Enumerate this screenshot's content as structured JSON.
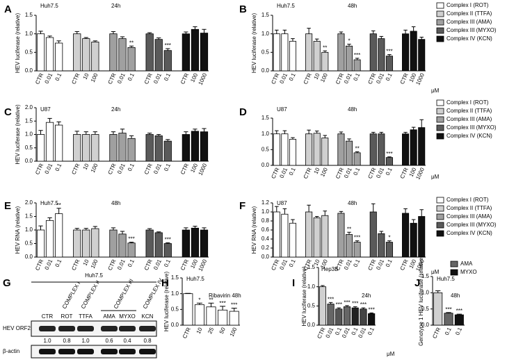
{
  "chart_data": [
    {
      "type": "bar",
      "panel_label": "A",
      "cell_line": "Huh7.5",
      "title": "24h",
      "y_label": "HEV luciferase (relative)",
      "categories": [
        "CTR",
        "0.01",
        "0.1",
        null,
        "CTR",
        "10",
        "100",
        null,
        "CTR",
        "0.01",
        "0.1",
        null,
        "CTR",
        "0.01",
        "0.1",
        null,
        "CTR",
        "100",
        "1000"
      ],
      "values": [
        1.0,
        0.9,
        0.75,
        null,
        1.0,
        0.87,
        0.78,
        null,
        1.0,
        0.87,
        0.63,
        null,
        1.0,
        0.85,
        0.55,
        null,
        1.0,
        1.12,
        1.02
      ],
      "errors": [
        0.07,
        0.04,
        0.06,
        null,
        0.06,
        0.03,
        0.03,
        null,
        0.06,
        0.05,
        0.04,
        null,
        0.03,
        0.04,
        0.05,
        null,
        0.05,
        0.07,
        0.1
      ],
      "significance": [
        null,
        null,
        null,
        null,
        null,
        null,
        null,
        null,
        null,
        null,
        "**",
        null,
        null,
        null,
        "***",
        null,
        null,
        null,
        null
      ],
      "colors": [
        "#ffffff",
        "#ffffff",
        "#ffffff",
        null,
        "#d0d0d0",
        "#d0d0d0",
        "#d0d0d0",
        null,
        "#a0a0a0",
        "#a0a0a0",
        "#a0a0a0",
        null,
        "#5a5a5a",
        "#5a5a5a",
        "#5a5a5a",
        null,
        "#111111",
        "#111111",
        "#111111"
      ],
      "ylim": [
        0,
        1.5
      ],
      "yticks": [
        {
          "value": 0,
          "label": "0.0"
        },
        0.5,
        {
          "value": 1,
          "label": "1.0"
        },
        1.5
      ]
    },
    {
      "type": "bar",
      "panel_label": "B",
      "cell_line": "Huh7.5",
      "title": "48h",
      "y_label": "HEV luciferase (relative)",
      "unit_label": "μM",
      "categories": [
        "CTR",
        "0.01",
        "0.1",
        null,
        "CTR",
        "10",
        "100",
        null,
        "CTR",
        "0.01",
        "0.1",
        null,
        "CTR",
        "0.01",
        "0.1",
        null,
        "CTR",
        "100",
        "1000"
      ],
      "values": [
        1.0,
        1.0,
        0.8,
        null,
        1.0,
        0.8,
        0.5,
        null,
        1.0,
        0.67,
        0.3,
        null,
        1.0,
        0.87,
        0.4,
        null,
        1.0,
        1.07,
        0.85
      ],
      "errors": [
        0.1,
        0.1,
        0.07,
        null,
        0.15,
        0.06,
        0.04,
        null,
        0.05,
        0.05,
        0.04,
        null,
        0.08,
        0.06,
        0.04,
        null,
        0.1,
        0.12,
        0.06
      ],
      "significance": [
        null,
        null,
        null,
        null,
        null,
        null,
        "**",
        null,
        null,
        "*",
        "***",
        null,
        null,
        null,
        "***",
        null,
        null,
        null,
        null
      ],
      "colors": [
        "#ffffff",
        "#ffffff",
        "#ffffff",
        null,
        "#d0d0d0",
        "#d0d0d0",
        "#d0d0d0",
        null,
        "#a0a0a0",
        "#a0a0a0",
        "#a0a0a0",
        null,
        "#5a5a5a",
        "#5a5a5a",
        "#5a5a5a",
        null,
        "#111111",
        "#111111",
        "#111111"
      ],
      "ylim": [
        0,
        1.5
      ],
      "yticks": [
        {
          "value": 0,
          "label": "0.0"
        },
        0.5,
        {
          "value": 1,
          "label": "1.0"
        },
        1.5
      ],
      "legend": {
        "labels": [
          "Complex I (ROT)",
          "Complex II (TTFA)",
          "Complex III (AMA)",
          "Complex III (MYXO)",
          "Complex IV (KCN)"
        ],
        "colors": [
          "#ffffff",
          "#d0d0d0",
          "#a0a0a0",
          "#5a5a5a",
          "#111111"
        ]
      }
    },
    {
      "type": "bar",
      "panel_label": "C",
      "cell_line": "U87",
      "title": "24h",
      "y_label": "HEV luciferase (relative)",
      "categories": [
        "CTR",
        "0.01",
        "0.1",
        null,
        "CTR",
        "10",
        "100",
        null,
        "CTR",
        "0.01",
        "0.1",
        null,
        "CTR",
        "0.01",
        "0.1",
        null,
        "CTR",
        "100",
        "1000"
      ],
      "values": [
        1.0,
        1.45,
        1.35,
        null,
        1.0,
        1.0,
        1.0,
        null,
        1.0,
        1.05,
        0.85,
        null,
        1.0,
        0.95,
        0.75,
        null,
        1.0,
        1.12,
        1.1
      ],
      "errors": [
        0.15,
        0.15,
        0.12,
        null,
        0.12,
        0.1,
        0.1,
        null,
        0.1,
        0.15,
        0.1,
        null,
        0.05,
        0.05,
        0.06,
        null,
        0.1,
        0.08,
        0.12
      ],
      "significance": [
        null,
        null,
        null,
        null,
        null,
        null,
        null,
        null,
        null,
        null,
        null,
        null,
        null,
        null,
        null,
        null,
        null,
        null,
        null
      ],
      "colors": [
        "#ffffff",
        "#ffffff",
        "#ffffff",
        null,
        "#d0d0d0",
        "#d0d0d0",
        "#d0d0d0",
        null,
        "#a0a0a0",
        "#a0a0a0",
        "#a0a0a0",
        null,
        "#5a5a5a",
        "#5a5a5a",
        "#5a5a5a",
        null,
        "#111111",
        "#111111",
        "#111111"
      ],
      "ylim": [
        0,
        2
      ],
      "yticks": [
        {
          "value": 0,
          "label": "0.0"
        },
        0.5,
        {
          "value": 1,
          "label": "1.0"
        },
        1.5,
        {
          "value": 2,
          "label": "2.0"
        }
      ]
    },
    {
      "type": "bar",
      "panel_label": "D",
      "cell_line": "U87",
      "title": "48h",
      "unit_label": "μM",
      "categories": [
        "CTR",
        "0.01",
        "0.1",
        null,
        "CTR",
        "10",
        "100",
        null,
        "CTR",
        "0.01",
        "0.1",
        null,
        "CTR",
        "0.01",
        "0.1",
        null,
        "CTR",
        "100",
        "1000"
      ],
      "values": [
        1.0,
        1.0,
        0.83,
        null,
        1.0,
        1.02,
        0.87,
        null,
        1.0,
        0.77,
        0.4,
        null,
        1.0,
        1.0,
        0.25,
        null,
        1.0,
        1.13,
        1.2
      ],
      "errors": [
        0.1,
        0.1,
        0.05,
        null,
        0.12,
        0.07,
        0.08,
        null,
        0.06,
        0.07,
        0.03,
        null,
        0.05,
        0.05,
        0.02,
        null,
        0.05,
        0.08,
        0.25
      ],
      "significance": [
        null,
        null,
        null,
        null,
        null,
        null,
        null,
        null,
        null,
        null,
        "**",
        null,
        null,
        null,
        "***",
        null,
        null,
        null,
        null
      ],
      "colors": [
        "#ffffff",
        "#ffffff",
        "#ffffff",
        null,
        "#d0d0d0",
        "#d0d0d0",
        "#d0d0d0",
        null,
        "#a0a0a0",
        "#a0a0a0",
        "#a0a0a0",
        null,
        "#5a5a5a",
        "#5a5a5a",
        "#5a5a5a",
        null,
        "#111111",
        "#111111",
        "#111111"
      ],
      "ylim": [
        0,
        1.5
      ],
      "yticks": [
        {
          "value": 0,
          "label": "0.0"
        },
        0.5,
        {
          "value": 1,
          "label": "1.0"
        },
        1.5
      ],
      "legend": {
        "labels": [
          "Complex I (ROT)",
          "Complex II (TTFA)",
          "Complex III (AMA)",
          "Complex III (MYXO)",
          "Complex IV (KCN)"
        ],
        "colors": [
          "#ffffff",
          "#d0d0d0",
          "#a0a0a0",
          "#5a5a5a",
          "#111111"
        ]
      }
    },
    {
      "type": "bar",
      "panel_label": "E",
      "cell_line": "Huh7.5",
      "title": "48h",
      "y_label": "HEV RNA (relative)",
      "categories": [
        "CTR",
        "0.01",
        "0.1",
        null,
        "CTR",
        "10",
        "100",
        null,
        "CTR",
        "0.01",
        "0.1",
        null,
        "CTR",
        "0.01",
        "0.1",
        null,
        "CTR",
        "100",
        "1000"
      ],
      "values": [
        1.0,
        1.35,
        1.6,
        null,
        1.0,
        1.0,
        1.05,
        null,
        1.0,
        0.85,
        0.52,
        null,
        1.0,
        0.9,
        0.5,
        null,
        1.0,
        1.07,
        1.0
      ],
      "errors": [
        0.15,
        0.1,
        0.2,
        null,
        0.06,
        0.06,
        0.08,
        null,
        0.08,
        0.1,
        0.03,
        null,
        0.05,
        0.03,
        0.03,
        null,
        0.08,
        0.07,
        0.08
      ],
      "significance": [
        null,
        null,
        "**",
        null,
        null,
        null,
        null,
        null,
        null,
        null,
        "***",
        null,
        null,
        null,
        "***",
        null,
        null,
        null,
        null
      ],
      "colors": [
        "#ffffff",
        "#ffffff",
        "#ffffff",
        null,
        "#d0d0d0",
        "#d0d0d0",
        "#d0d0d0",
        null,
        "#a0a0a0",
        "#a0a0a0",
        "#a0a0a0",
        null,
        "#5a5a5a",
        "#5a5a5a",
        "#5a5a5a",
        null,
        "#111111",
        "#111111",
        "#111111"
      ],
      "ylim": [
        0,
        2
      ],
      "yticks": [
        {
          "value": 0,
          "label": "0.0"
        },
        0.5,
        {
          "value": 1,
          "label": "1.0"
        },
        1.5,
        {
          "value": 2,
          "label": "2.0"
        }
      ]
    },
    {
      "type": "bar",
      "panel_label": "F",
      "cell_line": "U87",
      "title": "48h",
      "y_label": "HEV RNA (relative)",
      "unit_label": "μM",
      "categories": [
        "CTR",
        "0.01",
        "0.1",
        null,
        "CTR",
        "10",
        "100",
        null,
        "CTR",
        "0.01",
        "0.1",
        null,
        "CTR",
        "0.01",
        "0.1",
        null,
        "CTR",
        "100",
        "1000"
      ],
      "values": [
        1.0,
        0.95,
        0.75,
        null,
        1.0,
        0.87,
        0.92,
        null,
        0.97,
        0.5,
        0.33,
        null,
        1.0,
        0.52,
        0.33,
        null,
        0.97,
        0.75,
        0.9
      ],
      "errors": [
        0.12,
        0.12,
        0.08,
        null,
        0.15,
        0.03,
        0.1,
        null,
        0.04,
        0.05,
        0.03,
        null,
        0.18,
        0.05,
        0.03,
        null,
        0.1,
        0.08,
        0.15
      ],
      "significance": [
        null,
        null,
        null,
        null,
        null,
        null,
        null,
        null,
        null,
        "**",
        "***",
        null,
        null,
        null,
        "*",
        null,
        null,
        null,
        null
      ],
      "colors": [
        "#ffffff",
        "#ffffff",
        "#ffffff",
        null,
        "#d0d0d0",
        "#d0d0d0",
        "#d0d0d0",
        null,
        "#a0a0a0",
        "#a0a0a0",
        "#a0a0a0",
        null,
        "#5a5a5a",
        "#5a5a5a",
        "#5a5a5a",
        null,
        "#111111",
        "#111111",
        "#111111"
      ],
      "ylim": [
        0,
        1.2
      ],
      "yticks": [
        {
          "value": 0,
          "label": "0.0"
        },
        0.2,
        0.4,
        0.6,
        0.8,
        {
          "value": 1,
          "label": "1.0"
        },
        1.2
      ],
      "legend": {
        "labels": [
          "Complex I (ROT)",
          "Complex II (TTFA)",
          "Complex III (AMA)",
          "Complex III (MYXO)",
          "Complex IV (KCN)"
        ],
        "colors": [
          "#ffffff",
          "#d0d0d0",
          "#a0a0a0",
          "#5a5a5a",
          "#111111"
        ]
      }
    },
    {
      "type": "bar",
      "panel_label": "H",
      "cell_line": "Huh7.5",
      "title": "Ribavirin 48h",
      "y_label": "HEV luciferase (relative)",
      "categories": [
        "CTR",
        "10",
        "25",
        "50",
        "100"
      ],
      "values": [
        1.0,
        0.65,
        0.58,
        0.48,
        0.44
      ],
      "errors": [
        0.01,
        0.05,
        0.12,
        0.12,
        0.1
      ],
      "significance": [
        null,
        "*",
        "**",
        "***",
        "***"
      ],
      "colors": [
        "#ffffff",
        "#ffffff",
        "#ffffff",
        "#ffffff",
        "#ffffff"
      ],
      "ylim": [
        0,
        1.5
      ],
      "yticks": [
        {
          "value": 0,
          "label": "0.0"
        },
        0.5,
        {
          "value": 1,
          "label": "1.0"
        },
        1.5
      ]
    },
    {
      "type": "bar",
      "panel_label": "I",
      "cell_line": "Hep3B",
      "title": "24h",
      "y_label": "HEV luciferase (relative)",
      "unit_label": "μM",
      "categories": [
        "CTR",
        "0.01",
        "0.1",
        "0.01",
        "0.1",
        "0.01",
        "0.1"
      ],
      "values": [
        1.0,
        0.55,
        0.42,
        0.48,
        0.45,
        0.42,
        0.3
      ],
      "errors": [
        0.03,
        0.04,
        0.03,
        0.03,
        0.03,
        0.03,
        0.02
      ],
      "significance": [
        null,
        "***",
        "***",
        "***",
        "***",
        "***",
        "***"
      ],
      "colors": [
        "#d0d0d0",
        "#666666",
        "#555555",
        "#666666",
        "#222222",
        "#444444",
        "#111111"
      ],
      "ylim": [
        0,
        1.5
      ],
      "yticks": [
        {
          "value": 0,
          "label": "0.0"
        },
        0.5,
        {
          "value": 1,
          "label": "1.0"
        },
        1.5
      ]
    },
    {
      "type": "bar",
      "panel_label": "J",
      "cell_line": "Huh7.5",
      "title": "48h",
      "y_label": "Genotype 1 HEV luciferase (relative)",
      "categories": [
        "CTR",
        "0.1",
        "0.1"
      ],
      "values": [
        1.0,
        0.37,
        0.32
      ],
      "errors": [
        0.06,
        0.02,
        0.02
      ],
      "significance": [
        null,
        "***",
        "***"
      ],
      "colors": [
        "#d0d0d0",
        "#666666",
        "#111111"
      ],
      "ylim": [
        0,
        1.5
      ],
      "yticks": [
        {
          "value": 0,
          "label": "0.0"
        },
        0.5,
        {
          "value": 1,
          "label": "1.0"
        },
        1.5
      ],
      "legend": {
        "labels": [
          "AMA",
          "MYXO"
        ],
        "colors": [
          "#666666",
          "#111111"
        ]
      }
    }
  ],
  "blot": {
    "panel_label": "G",
    "cell_line": "Huh7.5",
    "complexes": [
      "COMPLEX I",
      "COMPLEX II",
      "COMPLEX III",
      "COMPLEX IV"
    ],
    "lanes": [
      "CTR",
      "ROT",
      "TTFA",
      "AMA",
      "MYXO",
      "KCN"
    ],
    "rows": [
      "HEV ORF2",
      "β-actin"
    ],
    "quantification": [
      "1.0",
      "0.8",
      "1.0",
      "0.6",
      "0.4",
      "0.8"
    ]
  }
}
